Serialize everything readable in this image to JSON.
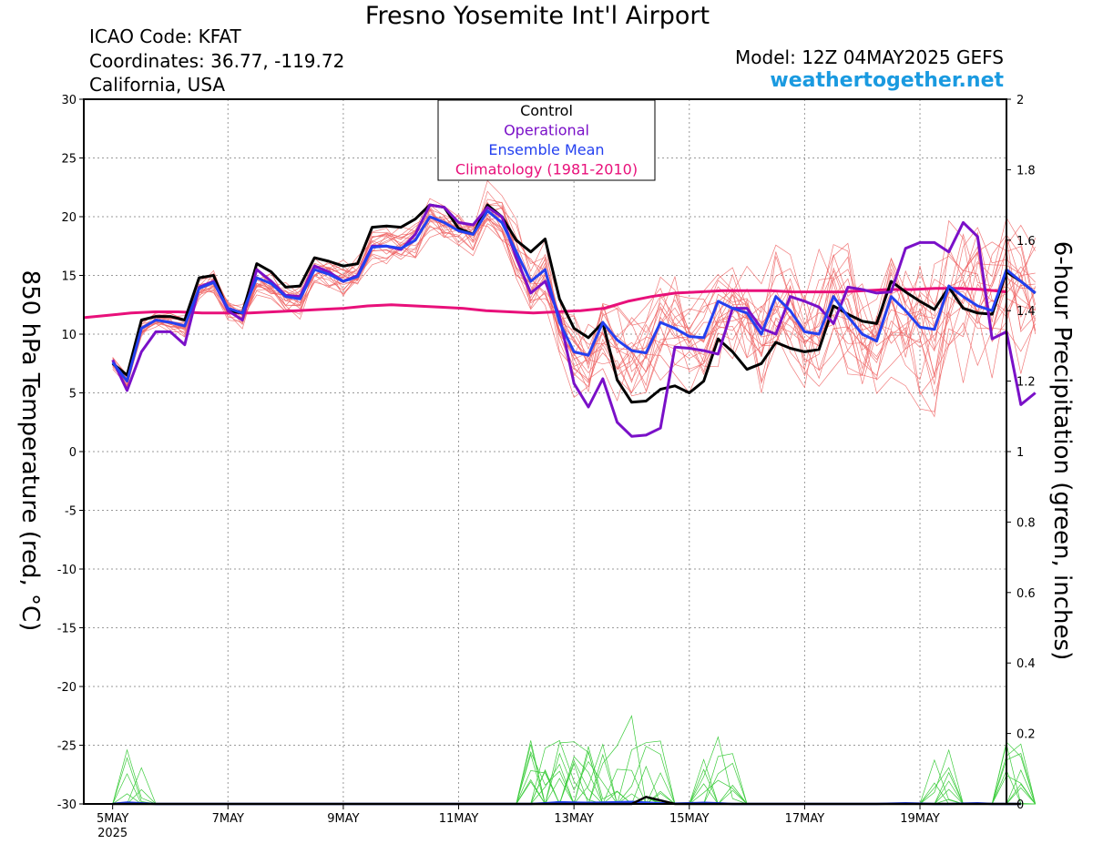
{
  "header": {
    "title": "Fresno Yosemite Int'l Airport",
    "icao": "ICAO Code: KFAT",
    "coords": "Coordinates: 36.77, -119.72",
    "region": "California, USA",
    "model": "Model: 12Z 04MAY2025 GEFS",
    "site": "weathertogether.net"
  },
  "colors": {
    "control": "#000000",
    "operational": "#7a10c8",
    "mean": "#2440f0",
    "climatology": "#e8107a",
    "members_temp": "#ee6464",
    "members_precip": "#3ccc3c",
    "site": "#1a9ae0"
  },
  "chart_data": {
    "type": "line",
    "title": "Fresno Yosemite Int'l Airport",
    "xlabel": "",
    "ylabel": "850 hPa Temperature (red, °C)",
    "y2label": "6-hour Precipitation (green, inches)",
    "ylim": [
      -30,
      30
    ],
    "y2lim": [
      0,
      2
    ],
    "yticks": [
      30,
      25,
      20,
      15,
      10,
      5,
      0,
      -5,
      -10,
      -15,
      -20,
      -25,
      -30
    ],
    "y2ticks": [
      "2",
      "1.8",
      "1.6",
      "1.4",
      "1.2",
      "1",
      "0.8",
      "0.6",
      "0.4",
      "0.2",
      "0"
    ],
    "x_start_hour": 12,
    "x_step_hours": 6,
    "x_range_hours": [
      0,
      384
    ],
    "xticks": [
      {
        "hour": 12,
        "label": "5MAY",
        "label2": "2025"
      },
      {
        "hour": 60,
        "label": "7MAY"
      },
      {
        "hour": 108,
        "label": "9MAY"
      },
      {
        "hour": 156,
        "label": "11MAY"
      },
      {
        "hour": 204,
        "label": "13MAY"
      },
      {
        "hour": 252,
        "label": "15MAY"
      },
      {
        "hour": 300,
        "label": "17MAY"
      },
      {
        "hour": 348,
        "label": "19MAY"
      }
    ],
    "grid": true,
    "legend": {
      "position": "top-center",
      "entries": [
        "Control",
        "Operational",
        "Ensemble Mean",
        "Climatology (1981-2010)"
      ]
    },
    "series": [
      {
        "name": "Control",
        "color": "#000000",
        "width": 3,
        "values": [
          7.5,
          6.5,
          11.2,
          11.5,
          11.5,
          11.2,
          14.8,
          15,
          12,
          11.8,
          16,
          15.3,
          14,
          14.1,
          16.5,
          16.2,
          15.8,
          16,
          19.1,
          19.2,
          19.1,
          19.8,
          21,
          20.8,
          19,
          18.5,
          21,
          20,
          18,
          17,
          18.1,
          13,
          10.5,
          9.7,
          11,
          6.1,
          4.2,
          4.3,
          5.3,
          5.6,
          5,
          6,
          9.6,
          8.5,
          7,
          7.5,
          9.3,
          8.8,
          8.5,
          8.7,
          12.4,
          11.7,
          11.1,
          10.9,
          14.5,
          13.6,
          12.8,
          12.1,
          14,
          12.2,
          11.8,
          11.7,
          15.3,
          14.5,
          13.5
        ]
      },
      {
        "name": "Operational",
        "color": "#7a10c8",
        "width": 3,
        "values": [
          7.8,
          5.2,
          8.5,
          10.2,
          10.2,
          9.1,
          14,
          14.5,
          12,
          11.2,
          15.5,
          14.5,
          13.3,
          13.2,
          15.8,
          15.3,
          14.5,
          15,
          17.5,
          17.5,
          17.2,
          18.5,
          21,
          20.8,
          19.5,
          19.3,
          20.8,
          20,
          16.5,
          13.5,
          14.5,
          11.5,
          5.8,
          3.8,
          6.2,
          2.5,
          1.3,
          1.4,
          2,
          8.9,
          8.8,
          8.6,
          8.3,
          12.2,
          12.2,
          10.5,
          10,
          13.2,
          12.8,
          12.3,
          10.9,
          14,
          13.8,
          13.5,
          13.6,
          17.3,
          17.8,
          17.8,
          17,
          19.5,
          18.3,
          9.6,
          10.2,
          4,
          5
        ]
      },
      {
        "name": "Ensemble Mean",
        "color": "#2440f0",
        "width": 3,
        "values": [
          7.6,
          6,
          10.5,
          11.2,
          11,
          10.7,
          13.9,
          14.4,
          12.2,
          11.8,
          14.8,
          14.3,
          13.2,
          13,
          15.5,
          15.1,
          14.5,
          14.9,
          17.4,
          17.5,
          17.3,
          18,
          20,
          19.5,
          18.8,
          18.5,
          20.5,
          19.5,
          17,
          14.5,
          15.5,
          11,
          8.5,
          8.2,
          11,
          9.5,
          8.6,
          8.4,
          11,
          10.5,
          9.8,
          9.7,
          12.8,
          12.2,
          11.8,
          10,
          13.2,
          12,
          10.2,
          10,
          13.2,
          11.5,
          10,
          9.4,
          13.2,
          12,
          10.6,
          10.4,
          14.1,
          13.2,
          12.4,
          12,
          15.5,
          14.5,
          13.5
        ]
      },
      {
        "name": "Climatology (1981-2010)",
        "color": "#e8107a",
        "width": 3,
        "smooth": true,
        "values": [
          11.4,
          11.6,
          11.8,
          11.9,
          11.9,
          11.8,
          11.8,
          11.8,
          11.9,
          12.0,
          12.1,
          12.2,
          12.4,
          12.5,
          12.4,
          12.3,
          12.2,
          12.0,
          11.9,
          11.8,
          11.9,
          12.0,
          12.2,
          12.8,
          13.2,
          13.5,
          13.6,
          13.7,
          13.7,
          13.7,
          13.6,
          13.6,
          13.6,
          13.7,
          13.8,
          13.8,
          13.9,
          13.9,
          13.8,
          13.6
        ]
      }
    ],
    "precip_series": [
      {
        "name": "Ensemble Mean",
        "color": "#2440f0",
        "values": [
          0,
          0.004,
          0.002,
          0,
          0,
          0,
          0,
          0,
          0,
          0,
          0,
          0,
          0,
          0,
          0,
          0,
          0,
          0,
          0,
          0,
          0,
          0,
          0,
          0,
          0,
          0,
          0,
          0,
          0,
          0,
          0.002,
          0.005,
          0.004,
          0.003,
          0.004,
          0.005,
          0.006,
          0.004,
          0.002,
          0.001,
          0.002,
          0.003,
          0.002,
          0,
          0,
          0,
          0,
          0,
          0,
          0,
          0,
          0,
          0,
          0,
          0.001,
          0.002,
          0.001,
          0,
          0,
          0.001,
          0.002,
          0,
          0,
          0
        ]
      },
      {
        "name": "Control",
        "color": "#000000",
        "values": [
          0,
          0,
          0,
          0,
          0,
          0,
          0,
          0,
          0,
          0,
          0,
          0,
          0,
          0,
          0,
          0,
          0,
          0,
          0,
          0,
          0,
          0,
          0,
          0,
          0,
          0,
          0,
          0,
          0,
          0,
          0,
          0,
          0,
          0,
          0,
          0,
          0,
          0.02,
          0.01,
          0,
          0,
          0,
          0,
          0,
          0,
          0,
          0,
          0,
          0,
          0,
          0,
          0,
          0,
          0,
          0,
          0,
          0,
          0,
          0,
          0,
          0,
          0,
          0,
          0
        ]
      }
    ]
  }
}
